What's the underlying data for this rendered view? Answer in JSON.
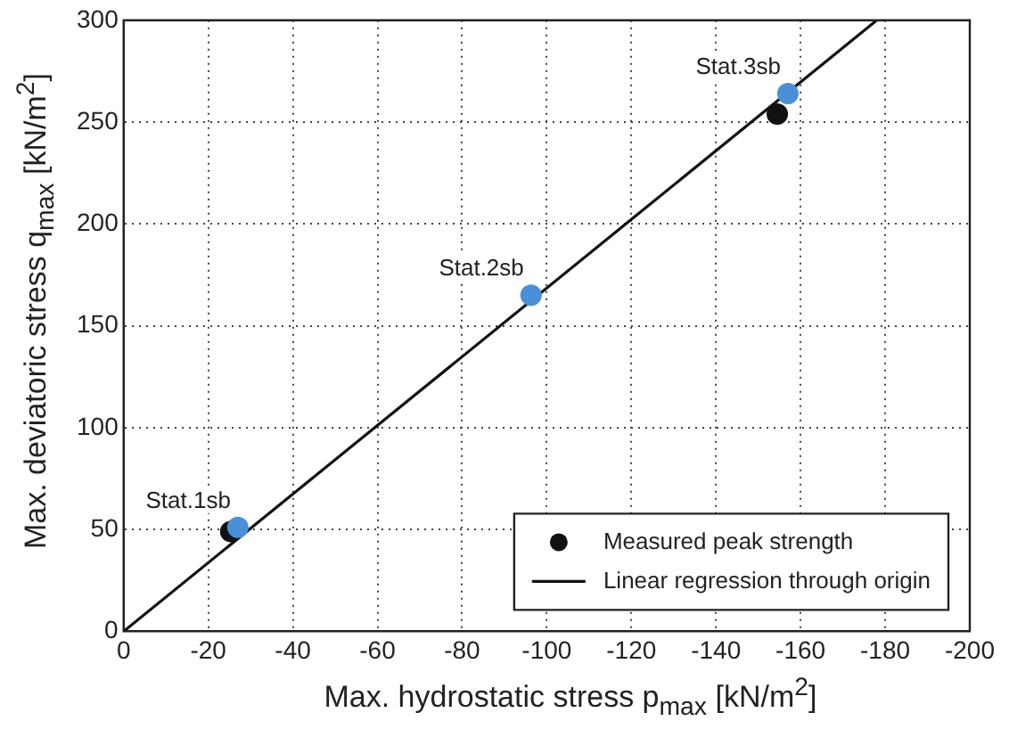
{
  "chart_data": {
    "type": "scatter",
    "xlabel": "Max. hydrostatic stress  p$_{max}$  [kN/m$^{2}$]",
    "ylabel": "Max. deviatoric stress  q$_{max}$  [kN/m$^{2}$]",
    "xlim": [
      0,
      -200
    ],
    "xticks": [
      0,
      -20,
      -40,
      -60,
      -80,
      -100,
      -120,
      -140,
      -160,
      -180,
      -200
    ],
    "ylim": [
      0,
      300
    ],
    "yticks": [
      0,
      50,
      100,
      150,
      200,
      250,
      300
    ],
    "grid": true,
    "legend": "bottom right",
    "marker": "circle",
    "series": [
      {
        "name": "Measured peak strength",
        "color": "#111111",
        "x": [
          -25.3,
          -154.5
        ],
        "values": [
          49,
          254
        ]
      },
      {
        "name": "Linear regression through origin",
        "type": "line",
        "color": "#111111",
        "x": [
          0,
          -178
        ],
        "values": [
          0,
          300
        ],
        "marker": "none",
        "line_style": "solid"
      },
      {
        "color": "#4a90d9",
        "x": [
          -27,
          -96.3,
          -157
        ],
        "values": [
          51,
          165,
          264
        ]
      }
    ],
    "annotations": [
      {
        "text": "Stat.1sb",
        "x": -27,
        "y": 51
      },
      {
        "text": "Stat.2sb",
        "x": -96.3,
        "y": 165
      },
      {
        "text": "Stat.3sb",
        "x": -157,
        "y": 264
      }
    ]
  }
}
